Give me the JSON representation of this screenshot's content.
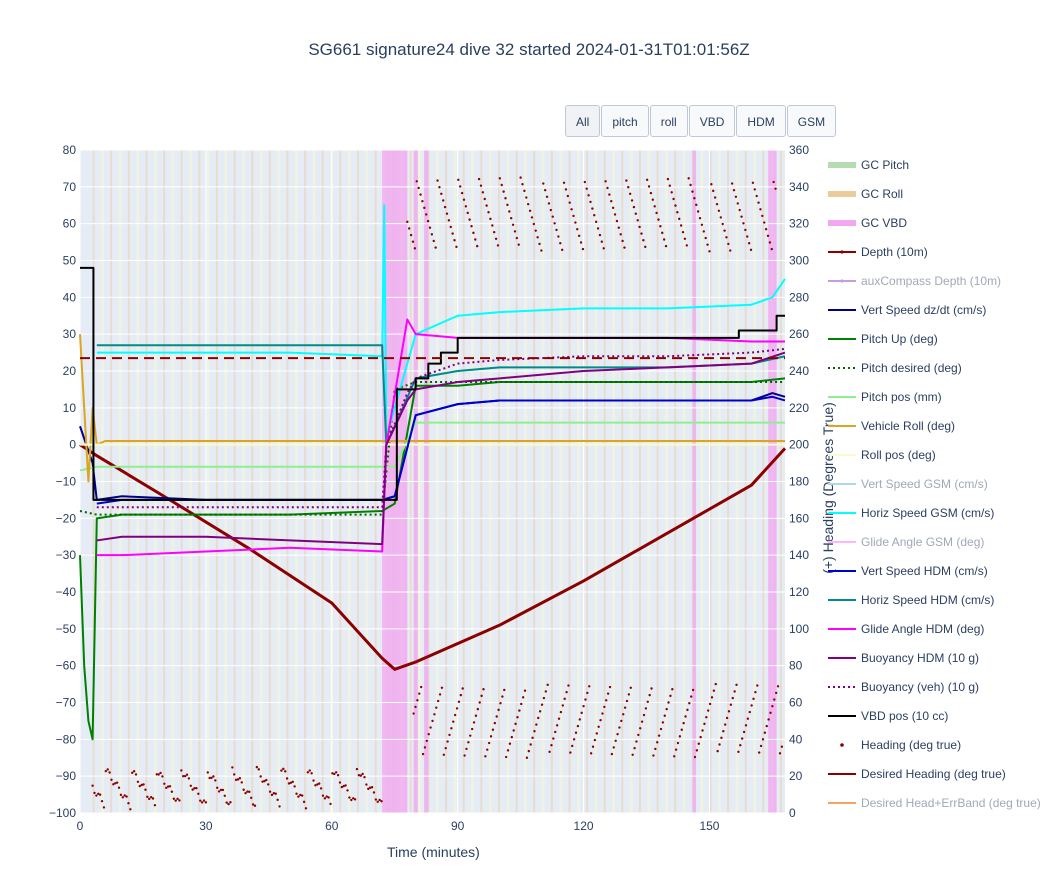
{
  "title": "SG661 signature24 dive 32 started 2024-01-31T01:01:56Z",
  "buttons": [
    "All",
    "pitch",
    "roll",
    "VBD",
    "HDM",
    "GSM"
  ],
  "chart_data": {
    "type": "line",
    "xlabel": "Time (minutes)",
    "y2label": "(+) Heading (Degrees True)",
    "xlim": [
      0,
      168
    ],
    "ylim": [
      -100,
      80
    ],
    "y2lim": [
      0,
      360
    ],
    "xticks": [
      0,
      30,
      60,
      90,
      120,
      150
    ],
    "yticks": [
      80,
      70,
      60,
      50,
      40,
      30,
      20,
      10,
      0,
      -10,
      -20,
      -30,
      -40,
      -50,
      -60,
      -70,
      -80,
      -90,
      -100
    ],
    "yticklabels": [
      "80",
      "70",
      "60",
      "50",
      "40",
      "30",
      "20",
      "10",
      "0",
      "−10",
      "−20",
      "−30",
      "−40",
      "−50",
      "−60",
      "−70",
      "−80",
      "−90",
      "−100"
    ],
    "y2ticks": [
      360,
      340,
      320,
      300,
      280,
      260,
      240,
      220,
      200,
      180,
      160,
      140,
      120,
      100,
      80,
      60,
      40,
      20,
      0
    ],
    "vbd_bands": [
      [
        72,
        78
      ],
      [
        79.5,
        80.5
      ],
      [
        82,
        83
      ],
      [
        146,
        146.8
      ],
      [
        164,
        166
      ]
    ],
    "series": [
      {
        "name": "GC Pitch",
        "color": "#b5dbb0",
        "style": "band"
      },
      {
        "name": "GC Roll",
        "color": "#ebcb9a",
        "style": "band"
      },
      {
        "name": "GC VBD",
        "color": "#f1a8f0",
        "style": "band"
      },
      {
        "name": "Depth (10m)",
        "color": "#8b0000",
        "style": "line-marker",
        "x": [
          0,
          4,
          20,
          40,
          60,
          72,
          75,
          80,
          100,
          120,
          140,
          160,
          168
        ],
        "y": [
          0,
          -3,
          -14,
          -28,
          -43,
          -58,
          -61,
          -59,
          -49,
          -37,
          -24,
          -11,
          -1
        ]
      },
      {
        "name": "auxCompass Depth (10m)",
        "color": "#c59ce2",
        "style": "line-marker",
        "dim": true
      },
      {
        "name": "Vert Speed dz/dt (cm/s)",
        "color": "#00008b",
        "style": "line",
        "x": [
          0,
          3,
          4,
          10,
          30,
          50,
          72,
          75,
          80,
          90,
          100,
          120,
          140,
          160,
          165,
          168
        ],
        "y": [
          5,
          -5,
          -15,
          -14,
          -15,
          -15,
          -15,
          -14,
          8,
          11,
          12,
          12,
          12,
          12,
          14,
          13
        ]
      },
      {
        "name": "Pitch Up (deg)",
        "color": "#008000",
        "style": "line",
        "x": [
          0,
          1,
          2,
          3,
          4,
          10,
          30,
          50,
          72,
          75,
          80,
          90,
          100,
          120,
          140,
          160,
          168
        ],
        "y": [
          -30,
          -60,
          -75,
          -80,
          -20,
          -19,
          -19,
          -19,
          -18,
          -16,
          16,
          16,
          17,
          17,
          17,
          17,
          18
        ]
      },
      {
        "name": "Pitch desired (deg)",
        "color": "#006400",
        "style": "dot",
        "x": [
          0,
          4,
          30,
          72,
          75,
          80,
          168
        ],
        "y": [
          -18,
          -19,
          -19,
          -19,
          15,
          17,
          17
        ]
      },
      {
        "name": "Pitch pos (mm)",
        "color": "#90ee90",
        "style": "line",
        "x": [
          0,
          4,
          72,
          75,
          80,
          168
        ],
        "y": [
          -7,
          -6,
          -6,
          -6,
          6,
          6
        ]
      },
      {
        "name": "Vehicle Roll (deg)",
        "color": "#daa520",
        "style": "line",
        "x": [
          0,
          2,
          3,
          4,
          6,
          168
        ],
        "y": [
          30,
          -10,
          10,
          0,
          1,
          1
        ]
      },
      {
        "name": "Roll pos (deg)",
        "color": "#fafad2",
        "style": "line",
        "x": [
          0,
          168
        ],
        "y": [
          0,
          0
        ]
      },
      {
        "name": "Vert Speed GSM (cm/s)",
        "color": "#add8e6",
        "style": "line",
        "dim": true
      },
      {
        "name": "Horiz Speed GSM (cm/s)",
        "color": "#00ffff",
        "style": "line",
        "x": [
          4,
          10,
          30,
          50,
          72,
          72.5,
          73,
          75,
          80,
          90,
          100,
          120,
          140,
          160,
          165,
          168
        ],
        "y": [
          25,
          25,
          25,
          25,
          24,
          65,
          2,
          10,
          30,
          35,
          36,
          37,
          37,
          38,
          40,
          45
        ]
      },
      {
        "name": "Glide Angle GSM (deg)",
        "color": "#ffb6ff",
        "style": "line",
        "dim": true
      },
      {
        "name": "Vert Speed HDM (cm/s)",
        "color": "#0000cd",
        "style": "line",
        "x": [
          4,
          10,
          30,
          50,
          72,
          75,
          80,
          90,
          100,
          120,
          140,
          160,
          165,
          168
        ],
        "y": [
          -16,
          -15,
          -15,
          -15,
          -15,
          -14,
          8,
          11,
          12,
          12,
          12,
          12,
          13,
          12
        ]
      },
      {
        "name": "Horiz Speed HDM (cm/s)",
        "color": "#008b8b",
        "style": "line",
        "x": [
          4,
          10,
          30,
          50,
          72,
          73,
          75,
          80,
          90,
          100,
          120,
          140,
          160,
          168
        ],
        "y": [
          27,
          27,
          27,
          27,
          27,
          0,
          5,
          18,
          20,
          21,
          21,
          21,
          22,
          24
        ]
      },
      {
        "name": "Glide Angle HDM (deg)",
        "color": "#ff00ff",
        "style": "line",
        "x": [
          4,
          10,
          30,
          50,
          72,
          73,
          78,
          80,
          90,
          100,
          120,
          140,
          160,
          168
        ],
        "y": [
          -30,
          -30,
          -29,
          -28,
          -29,
          0,
          34,
          30,
          29,
          29,
          29,
          29,
          28,
          28
        ]
      },
      {
        "name": "Buoyancy HDM (10 g)",
        "color": "#800080",
        "style": "line",
        "x": [
          4,
          10,
          30,
          50,
          72,
          73,
          78,
          80,
          90,
          100,
          120,
          140,
          160,
          168
        ],
        "y": [
          -26,
          -25,
          -25,
          -26,
          -27,
          0,
          12,
          15,
          17,
          18,
          20,
          21,
          22,
          25
        ]
      },
      {
        "name": "Buoyancy (veh) (10 g)",
        "color": "#800080",
        "style": "dot",
        "x": [
          4,
          10,
          30,
          50,
          72,
          73,
          78,
          80,
          90,
          100,
          120,
          140,
          160,
          168
        ],
        "y": [
          -17,
          -17,
          -17,
          -17,
          -17,
          0,
          14,
          18,
          22,
          23,
          24,
          24,
          25,
          26
        ]
      },
      {
        "name": "VBD pos (10 cc)",
        "color": "#000000",
        "style": "step",
        "x": [
          0,
          3,
          3.2,
          30,
          60,
          75,
          75.5,
          80,
          83,
          86,
          90,
          100,
          120,
          140,
          157,
          166,
          168
        ],
        "y": [
          48,
          48,
          -15,
          -15,
          -15,
          -15,
          15,
          18,
          22,
          25,
          29,
          29,
          29,
          29,
          31,
          35,
          35
        ]
      },
      {
        "name": "Heading (deg true)",
        "color": "#8b0000",
        "style": "markers"
      },
      {
        "name": "Desired Heading (deg true)",
        "color": "#8b0000",
        "style": "dash",
        "y2": 247
      },
      {
        "name": "Desired Head+ErrBand (deg true)",
        "color": "#f4a460",
        "style": "line",
        "dim": true
      }
    ]
  }
}
